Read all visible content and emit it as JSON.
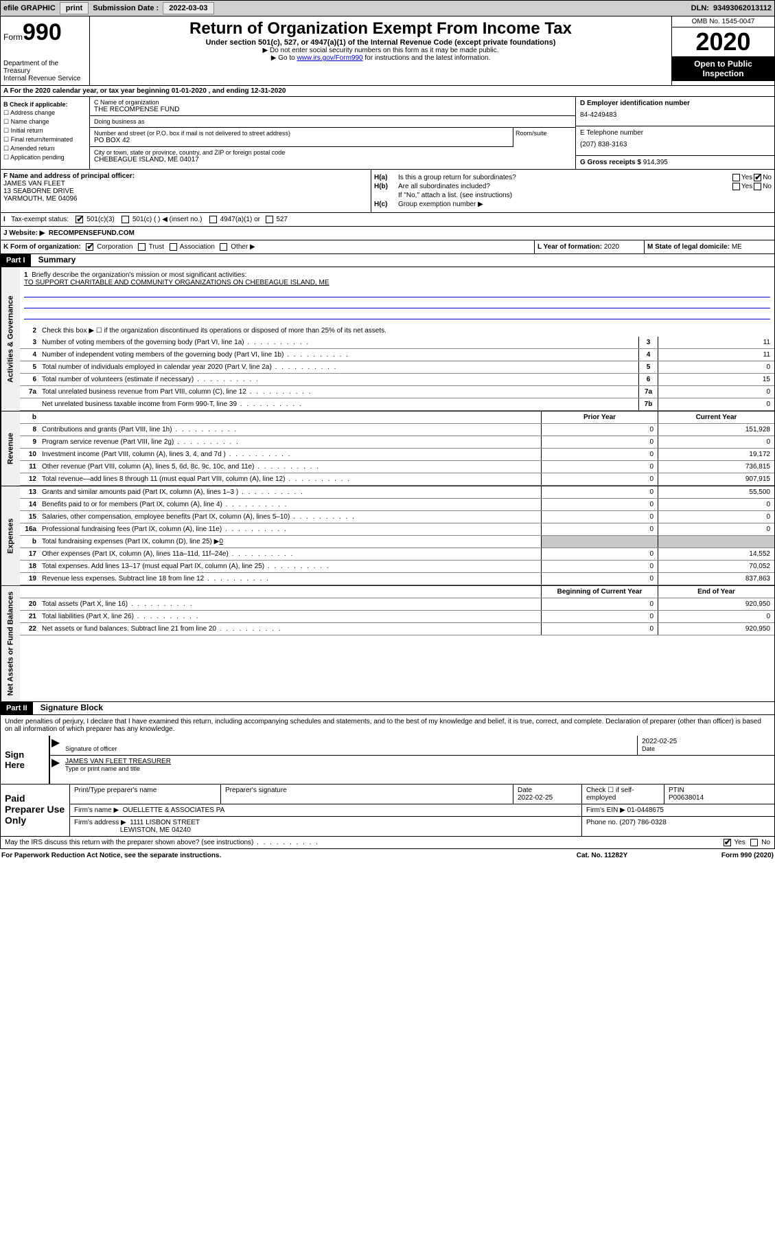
{
  "topbar": {
    "efile": "efile GRAPHIC",
    "print": "print",
    "sub_lbl": "Submission Date :",
    "sub_date": "2022-03-03",
    "dln_lbl": "DLN:",
    "dln": "93493062013112"
  },
  "header": {
    "form": "Form",
    "num": "990",
    "dept": "Department of the Treasury\nInternal Revenue Service",
    "title": "Return of Organization Exempt From Income Tax",
    "sub1": "Under section 501(c), 527, or 4947(a)(1) of the Internal Revenue Code (except private foundations)",
    "sub2": "▶ Do not enter social security numbers on this form as it may be made public.",
    "sub3_pre": "▶ Go to ",
    "sub3_link": "www.irs.gov/Form990",
    "sub3_post": " for instructions and the latest information.",
    "omb": "OMB No. 1545-0047",
    "year": "2020",
    "open": "Open to Public Inspection"
  },
  "row_a": "A For the 2020 calendar year, or tax year beginning 01-01-2020    , and ending 12-31-2020",
  "col_b": {
    "hdr": "B Check if applicable:",
    "opts": [
      "Address change",
      "Name change",
      "Initial return",
      "Final return/terminated",
      "Amended return",
      "Application pending"
    ]
  },
  "col_c": {
    "name_lbl": "C Name of organization",
    "name": "THE RECOMPENSE FUND",
    "dba_lbl": "Doing business as",
    "dba": "",
    "addr_lbl": "Number and street (or P.O. box if mail is not delivered to street address)",
    "room_lbl": "Room/suite",
    "addr": "PO BOX 42",
    "city_lbl": "City or town, state or province, country, and ZIP or foreign postal code",
    "city": "CHEBEAGUE ISLAND, ME  04017"
  },
  "col_d": {
    "ein_lbl": "D Employer identification number",
    "ein": "84-4249483",
    "tel_lbl": "E Telephone number",
    "tel": "(207) 838-3163",
    "gross_lbl": "G Gross receipts $",
    "gross": "914,395"
  },
  "col_f": {
    "lbl": "F Name and address of principal officer:",
    "name": "JAMES VAN FLEET",
    "addr1": "13 SEABORNE DRIVE",
    "addr2": "YARMOUTH, ME  04096"
  },
  "col_h": {
    "ha": "Is this a group return for subordinates?",
    "hb": "Are all subordinates included?",
    "hb2": "If \"No,\" attach a list. (see instructions)",
    "hc": "Group exemption number ▶"
  },
  "tax": {
    "lbl": "Tax-exempt status:",
    "o1": "501(c)(3)",
    "o2": "501(c) (  ) ◀ (insert no.)",
    "o3": "4947(a)(1) or",
    "o4": "527"
  },
  "row_j": {
    "lbl": "J    Website: ▶",
    "val": "RECOMPENSEFUND.COM"
  },
  "row_k": {
    "k1_lbl": "K Form of organization:",
    "k1_opts": [
      "Corporation",
      "Trust",
      "Association",
      "Other ▶"
    ],
    "k2_lbl": "L Year of formation:",
    "k2_val": "2020",
    "k3_lbl": "M State of legal domicile:",
    "k3_val": "ME"
  },
  "part1": {
    "hdr": "Part I",
    "title": "Summary",
    "side1": "Activities & Governance",
    "side2": "Revenue",
    "side3": "Expenses",
    "side4": "Net Assets or Fund Balances",
    "l1_lbl": "Briefly describe the organization's mission or most significant activities:",
    "l1_val": "TO SUPPORT CHARITABLE AND COMMUNITY ORGANIZATIONS ON CHEBEAGUE ISLAND, ME",
    "l2": "Check this box ▶ ☐  if the organization discontinued its operations or disposed of more than 25% of its net assets.",
    "lines_gov": [
      {
        "n": "3",
        "d": "Number of voting members of the governing body (Part VI, line 1a)",
        "b": "3",
        "v": "11"
      },
      {
        "n": "4",
        "d": "Number of independent voting members of the governing body (Part VI, line 1b)",
        "b": "4",
        "v": "11"
      },
      {
        "n": "5",
        "d": "Total number of individuals employed in calendar year 2020 (Part V, line 2a)",
        "b": "5",
        "v": "0"
      },
      {
        "n": "6",
        "d": "Total number of volunteers (estimate if necessary)",
        "b": "6",
        "v": "15"
      },
      {
        "n": "7a",
        "d": "Total unrelated business revenue from Part VIII, column (C), line 12",
        "b": "7a",
        "v": "0"
      },
      {
        "n": "",
        "d": "Net unrelated business taxable income from Form 990-T, line 39",
        "b": "7b",
        "v": "0"
      }
    ],
    "col_hdr_b": "b",
    "col_hdr_prior": "Prior Year",
    "col_hdr_curr": "Current Year",
    "lines_rev": [
      {
        "n": "8",
        "d": "Contributions and grants (Part VIII, line 1h)",
        "p": "0",
        "c": "151,928"
      },
      {
        "n": "9",
        "d": "Program service revenue (Part VIII, line 2g)",
        "p": "0",
        "c": "0"
      },
      {
        "n": "10",
        "d": "Investment income (Part VIII, column (A), lines 3, 4, and 7d )",
        "p": "0",
        "c": "19,172"
      },
      {
        "n": "11",
        "d": "Other revenue (Part VIII, column (A), lines 5, 6d, 8c, 9c, 10c, and 11e)",
        "p": "0",
        "c": "736,815"
      },
      {
        "n": "12",
        "d": "Total revenue—add lines 8 through 11 (must equal Part VIII, column (A), line 12)",
        "p": "0",
        "c": "907,915"
      }
    ],
    "lines_exp": [
      {
        "n": "13",
        "d": "Grants and similar amounts paid (Part IX, column (A), lines 1–3 )",
        "p": "0",
        "c": "55,500"
      },
      {
        "n": "14",
        "d": "Benefits paid to or for members (Part IX, column (A), line 4)",
        "p": "0",
        "c": "0"
      },
      {
        "n": "15",
        "d": "Salaries, other compensation, employee benefits (Part IX, column (A), lines 5–10)",
        "p": "0",
        "c": "0"
      },
      {
        "n": "16a",
        "d": "Professional fundraising fees (Part IX, column (A), line 11e)",
        "p": "0",
        "c": "0"
      }
    ],
    "l16b": "Total fundraising expenses (Part IX, column (D), line 25) ▶",
    "l16b_val": "0",
    "lines_exp2": [
      {
        "n": "17",
        "d": "Other expenses (Part IX, column (A), lines 11a–11d, 11f–24e)",
        "p": "0",
        "c": "14,552"
      },
      {
        "n": "18",
        "d": "Total expenses. Add lines 13–17 (must equal Part IX, column (A), line 25)",
        "p": "0",
        "c": "70,052"
      },
      {
        "n": "19",
        "d": "Revenue less expenses. Subtract line 18 from line 12",
        "p": "0",
        "c": "837,863"
      }
    ],
    "col_hdr_beg": "Beginning of Current Year",
    "col_hdr_end": "End of Year",
    "lines_net": [
      {
        "n": "20",
        "d": "Total assets (Part X, line 16)",
        "p": "0",
        "c": "920,950"
      },
      {
        "n": "21",
        "d": "Total liabilities (Part X, line 26)",
        "p": "0",
        "c": "0"
      },
      {
        "n": "22",
        "d": "Net assets or fund balances. Subtract line 21 from line 20",
        "p": "0",
        "c": "920,950"
      }
    ]
  },
  "part2": {
    "hdr": "Part II",
    "title": "Signature Block",
    "decl": "Under penalties of perjury, I declare that I have examined this return, including accompanying schedules and statements, and to the best of my knowledge and belief, it is true, correct, and complete. Declaration of preparer (other than officer) is based on all information of which preparer has any knowledge.",
    "sign_here": "Sign Here",
    "sig_lbl": "Signature of officer",
    "date_lbl": "Date",
    "date_val": "2022-02-25",
    "name_lbl": "Type or print name and title",
    "name_val": "JAMES VAN FLEET TREASURER",
    "paid": "Paid Preparer Use Only",
    "p_name_lbl": "Print/Type preparer's name",
    "p_sig_lbl": "Preparer's signature",
    "p_date_lbl": "Date",
    "p_date_val": "2022-02-25",
    "p_check_lbl": "Check ☐ if self-employed",
    "p_ptin_lbl": "PTIN",
    "p_ptin": "P00638014",
    "firm_name_lbl": "Firm's name    ▶",
    "firm_name": "OUELLETTE & ASSOCIATES PA",
    "firm_ein_lbl": "Firm's EIN ▶",
    "firm_ein": "01-0448675",
    "firm_addr_lbl": "Firm's address ▶",
    "firm_addr1": "1111 LISBON STREET",
    "firm_addr2": "LEWISTON, ME  04240",
    "phone_lbl": "Phone no.",
    "phone": "(207) 786-0328",
    "discuss": "May the IRS discuss this return with the preparer shown above? (see instructions)",
    "yes": "Yes",
    "no": "No"
  },
  "footer": {
    "pra": "For Paperwork Reduction Act Notice, see the separate instructions.",
    "cat": "Cat. No. 11282Y",
    "form": "Form 990 (2020)"
  }
}
